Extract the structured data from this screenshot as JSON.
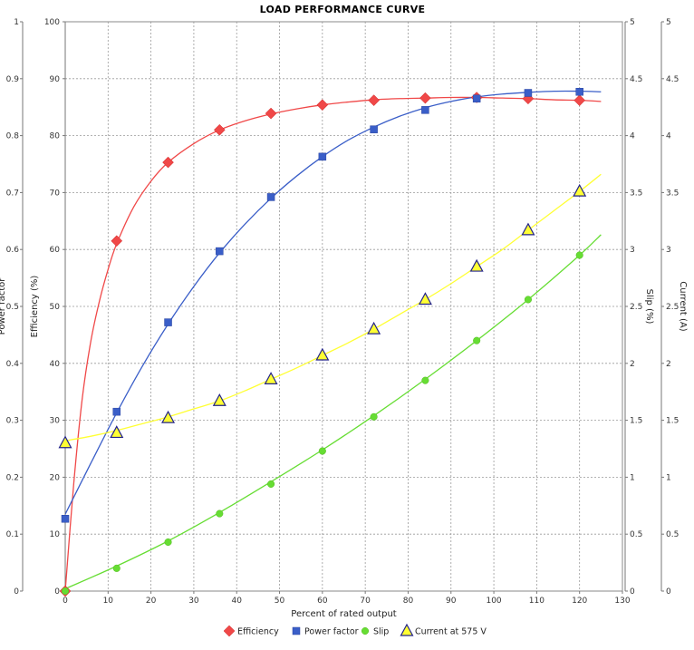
{
  "chart_data": {
    "type": "line",
    "title": "LOAD PERFORMANCE CURVE",
    "xlabel": "Percent of rated output",
    "xlim": [
      0,
      130
    ],
    "x_ticks": [
      "0",
      "10",
      "20",
      "30",
      "40",
      "50",
      "60",
      "70",
      "80",
      "90",
      "100",
      "110",
      "120",
      "130"
    ],
    "grid": true,
    "legend_position": "bottom",
    "axes": {
      "left_outer": {
        "label": "Power factor",
        "ylim": [
          0,
          1
        ],
        "ticks": [
          "0",
          "0.1",
          "0.2",
          "0.3",
          "0.4",
          "0.5",
          "0.6",
          "0.7",
          "0.8",
          "0.9",
          "1"
        ]
      },
      "left_inner": {
        "label": "Efficiency (%)",
        "ylim": [
          0,
          100
        ],
        "ticks": [
          "0",
          "10",
          "20",
          "30",
          "40",
          "50",
          "60",
          "70",
          "80",
          "90",
          "100"
        ]
      },
      "right_inner": {
        "label": "Slip (%)",
        "ylim": [
          0,
          5
        ],
        "ticks": [
          "0",
          "0.5",
          "1",
          "1.5",
          "2",
          "2.5",
          "3",
          "3.5",
          "4",
          "4.5",
          "5"
        ]
      },
      "right_outer": {
        "label": "Current (A)",
        "ylim": [
          0,
          5
        ],
        "ticks": [
          "0",
          "0.5",
          "1",
          "1.5",
          "2",
          "2.5",
          "3",
          "3.5",
          "4",
          "4.5",
          "5"
        ]
      }
    },
    "series": [
      {
        "name": "Efficiency",
        "axis": "left_inner",
        "color": "#f04848",
        "marker": "diamond",
        "points": [
          [
            0,
            0
          ],
          [
            12,
            61.5
          ],
          [
            24,
            75.3
          ],
          [
            36,
            81
          ],
          [
            48,
            83.9
          ],
          [
            60,
            85.4
          ],
          [
            72,
            86.2
          ],
          [
            84,
            86.6
          ],
          [
            96,
            86.7
          ],
          [
            108,
            86.5
          ],
          [
            120,
            86.2
          ]
        ],
        "curve": [
          [
            0,
            0
          ],
          [
            2,
            19
          ],
          [
            4,
            34
          ],
          [
            6,
            44
          ],
          [
            8,
            51
          ],
          [
            10,
            56.5
          ],
          [
            12,
            61
          ],
          [
            16,
            67.5
          ],
          [
            20,
            72
          ],
          [
            24,
            75.3
          ],
          [
            30,
            78.6
          ],
          [
            36,
            81
          ],
          [
            42,
            82.6
          ],
          [
            48,
            83.8
          ],
          [
            54,
            84.7
          ],
          [
            60,
            85.4
          ],
          [
            66,
            85.9
          ],
          [
            72,
            86.3
          ],
          [
            78,
            86.5
          ],
          [
            84,
            86.6
          ],
          [
            90,
            86.7
          ],
          [
            96,
            86.7
          ],
          [
            102,
            86.6
          ],
          [
            108,
            86.5
          ],
          [
            114,
            86.3
          ],
          [
            120,
            86.2
          ],
          [
            125,
            86
          ]
        ]
      },
      {
        "name": "Power factor",
        "axis": "left_outer",
        "color": "#3a5ec8",
        "marker": "square",
        "points": [
          [
            0,
            0.127
          ],
          [
            12,
            0.315
          ],
          [
            24,
            0.472
          ],
          [
            36,
            0.597
          ],
          [
            48,
            0.692
          ],
          [
            60,
            0.763
          ],
          [
            72,
            0.811
          ],
          [
            84,
            0.845
          ],
          [
            96,
            0.865
          ],
          [
            108,
            0.875
          ],
          [
            120,
            0.877
          ]
        ],
        "curve": [
          [
            0,
            0.135
          ],
          [
            6,
            0.225
          ],
          [
            12,
            0.313
          ],
          [
            18,
            0.395
          ],
          [
            24,
            0.469
          ],
          [
            30,
            0.535
          ],
          [
            36,
            0.594
          ],
          [
            42,
            0.645
          ],
          [
            48,
            0.69
          ],
          [
            54,
            0.729
          ],
          [
            60,
            0.763
          ],
          [
            66,
            0.792
          ],
          [
            72,
            0.815
          ],
          [
            78,
            0.834
          ],
          [
            84,
            0.849
          ],
          [
            90,
            0.86
          ],
          [
            96,
            0.868
          ],
          [
            102,
            0.873
          ],
          [
            108,
            0.876
          ],
          [
            114,
            0.878
          ],
          [
            120,
            0.878
          ],
          [
            125,
            0.877
          ]
        ]
      },
      {
        "name": "Slip",
        "axis": "right_inner",
        "color": "#66dd33",
        "marker": "circle",
        "points": [
          [
            0,
            0
          ],
          [
            12,
            0.2
          ],
          [
            24,
            0.43
          ],
          [
            36,
            0.68
          ],
          [
            48,
            0.94
          ],
          [
            60,
            1.23
          ],
          [
            72,
            1.53
          ],
          [
            84,
            1.85
          ],
          [
            96,
            2.2
          ],
          [
            108,
            2.56
          ],
          [
            120,
            2.95
          ]
        ],
        "curve": [
          [
            0,
            0.02
          ],
          [
            12,
            0.22
          ],
          [
            24,
            0.44
          ],
          [
            36,
            0.69
          ],
          [
            48,
            0.96
          ],
          [
            60,
            1.24
          ],
          [
            72,
            1.54
          ],
          [
            84,
            1.86
          ],
          [
            96,
            2.2
          ],
          [
            108,
            2.56
          ],
          [
            120,
            2.95
          ],
          [
            125,
            3.13
          ]
        ]
      },
      {
        "name": "Current at 575 V",
        "axis": "right_outer",
        "color": "#ffff33",
        "marker": "triangle",
        "points": [
          [
            0,
            1.3
          ],
          [
            12,
            1.39
          ],
          [
            24,
            1.52
          ],
          [
            36,
            1.67
          ],
          [
            48,
            1.86
          ],
          [
            60,
            2.07
          ],
          [
            72,
            2.3
          ],
          [
            84,
            2.56
          ],
          [
            96,
            2.85
          ],
          [
            108,
            3.17
          ],
          [
            120,
            3.51
          ]
        ],
        "curve": [
          [
            0,
            1.32
          ],
          [
            6,
            1.36
          ],
          [
            12,
            1.41
          ],
          [
            18,
            1.47
          ],
          [
            24,
            1.53
          ],
          [
            30,
            1.6
          ],
          [
            36,
            1.67
          ],
          [
            42,
            1.76
          ],
          [
            48,
            1.86
          ],
          [
            54,
            1.96
          ],
          [
            60,
            2.07
          ],
          [
            66,
            2.18
          ],
          [
            72,
            2.3
          ],
          [
            78,
            2.43
          ],
          [
            84,
            2.56
          ],
          [
            90,
            2.7
          ],
          [
            96,
            2.85
          ],
          [
            102,
            3.0
          ],
          [
            108,
            3.17
          ],
          [
            114,
            3.34
          ],
          [
            120,
            3.51
          ],
          [
            125,
            3.66
          ]
        ]
      }
    ]
  }
}
